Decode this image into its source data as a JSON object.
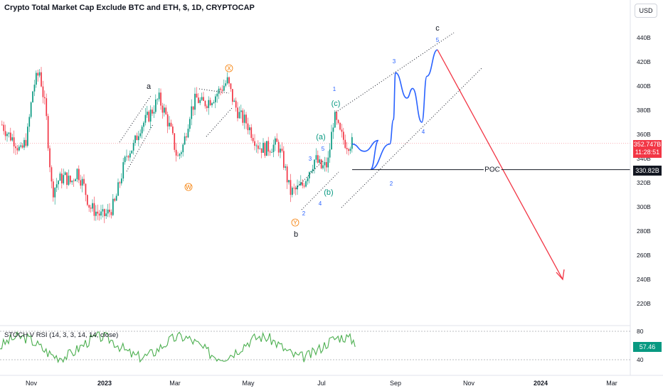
{
  "chart_data": {
    "type": "candlestick",
    "title": "Crypto Total Market Cap Exclude BTC and ETH, $, 1D, CRYPTOCAP",
    "currency_button": "USD",
    "x_tick_labels": [
      "Nov",
      "2023",
      "Mar",
      "May",
      "Jul",
      "Sep",
      "Nov",
      "2024",
      "Mar"
    ],
    "y_tick_labels": [
      "440B",
      "420B",
      "400B",
      "380B",
      "360B",
      "340B",
      "320B",
      "300B",
      "280B",
      "260B",
      "240B",
      "220B"
    ],
    "y_range": [
      205,
      455
    ],
    "last_price": "352.747B",
    "countdown": "11:28:51",
    "poc": {
      "label": "POC",
      "value_label": "330.82B",
      "value": 330.82
    },
    "price_series": [
      [
        "Oct",
        368
      ],
      [
        "Oct",
        360
      ],
      [
        "Oct",
        355
      ],
      [
        "Oct",
        345
      ],
      [
        "Nov",
        358
      ],
      [
        "Nov",
        400
      ],
      [
        "Nov",
        412
      ],
      [
        "Nov",
        378
      ],
      [
        "Nov",
        312
      ],
      [
        "Nov",
        322
      ],
      [
        "Dec",
        325
      ],
      [
        "Dec",
        320
      ],
      [
        "Dec",
        330
      ],
      [
        "Dec",
        318
      ],
      [
        "Dec",
        300
      ],
      [
        "Dec",
        296
      ],
      [
        "Dec",
        292
      ],
      [
        "Jan",
        295
      ],
      [
        "Jan",
        303
      ],
      [
        "Jan",
        325
      ],
      [
        "Jan",
        345
      ],
      [
        "Jan",
        350
      ],
      [
        "Feb",
        366
      ],
      [
        "Feb",
        372
      ],
      [
        "Feb",
        380
      ],
      [
        "Feb",
        390
      ],
      [
        "Feb",
        378
      ],
      [
        "Mar",
        362
      ],
      [
        "Mar",
        340
      ],
      [
        "Mar",
        352
      ],
      [
        "Mar",
        378
      ],
      [
        "Mar",
        390
      ],
      [
        "Mar",
        385
      ],
      [
        "Apr",
        388
      ],
      [
        "Apr",
        392
      ],
      [
        "Apr",
        398
      ],
      [
        "Apr",
        404
      ],
      [
        "Apr",
        386
      ],
      [
        "May",
        375
      ],
      [
        "May",
        370
      ],
      [
        "May",
        360
      ],
      [
        "May",
        350
      ],
      [
        "May",
        348
      ],
      [
        "Jun",
        350
      ],
      [
        "Jun",
        352
      ],
      [
        "Jun",
        336
      ],
      [
        "Jun",
        312
      ],
      [
        "Jun",
        314
      ],
      [
        "Jun",
        318
      ],
      [
        "Jul",
        330
      ],
      [
        "Jul",
        340
      ],
      [
        "Jul",
        332
      ],
      [
        "Jul",
        335
      ],
      [
        "Jul",
        375
      ],
      [
        "Jul",
        360
      ],
      [
        "Jul",
        352
      ],
      [
        "Jul",
        353
      ]
    ],
    "projection": [
      [
        "Jul",
        352
      ],
      [
        "Aug",
        346
      ],
      [
        "Aug",
        355
      ],
      [
        "Aug",
        331
      ],
      [
        "Aug",
        352
      ],
      [
        "Sep",
        372
      ],
      [
        "Sep",
        411
      ],
      [
        "Sep",
        390
      ],
      [
        "Sep",
        398
      ],
      [
        "Oct",
        370
      ],
      [
        "Oct",
        408
      ],
      [
        "Oct",
        430
      ],
      [
        "Dec",
        240
      ]
    ],
    "wave_labels": [
      "a",
      "b",
      "c",
      "W",
      "X",
      "Y",
      "(a)",
      "(b)",
      "(c)",
      "1",
      "2",
      "3",
      "4",
      "5"
    ],
    "indicator": {
      "title": "STOCH V RSI (14, 3, 3, 14, 14, close)",
      "y_tick_labels": [
        "80",
        "40"
      ],
      "last_value": "57.46"
    }
  },
  "colors": {
    "up": "#089981",
    "down": "#f23645",
    "projection": "#2962ff",
    "target_arrow": "#f23645",
    "stoch": "#4caf50",
    "poc_line": "#131722",
    "wave_label": "#2962ff",
    "wave_orange": "#f57c00",
    "wave_green": "#089981"
  }
}
